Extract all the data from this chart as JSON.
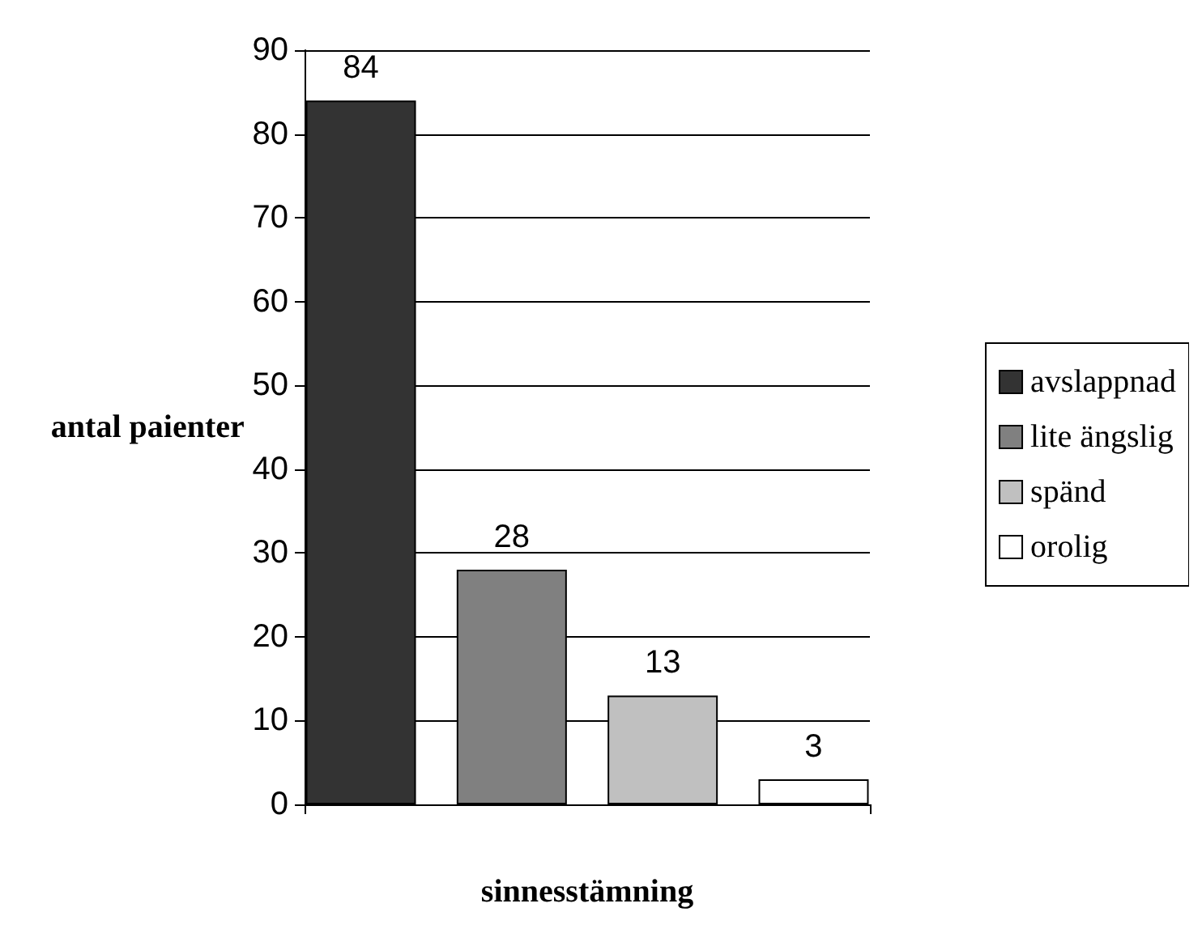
{
  "chart_data": {
    "type": "bar",
    "xlabel": "sinnesstämning",
    "ylabel": "antal paienter",
    "categories": [
      null
    ],
    "series": [
      {
        "name": "avslappnad",
        "color": "#333333",
        "values": [
          84
        ]
      },
      {
        "name": "lite ängslig",
        "color": "#808080",
        "values": [
          28
        ]
      },
      {
        "name": "spänd",
        "color": "#c0c0c0",
        "values": [
          13
        ]
      },
      {
        "name": "orolig",
        "color": "#ffffff",
        "values": [
          3
        ]
      }
    ],
    "ylim": [
      0,
      90
    ],
    "yticks": [
      0,
      10,
      20,
      30,
      40,
      50,
      60,
      70,
      80,
      90
    ],
    "grid": "y",
    "legend": "right",
    "data_labels": true
  }
}
